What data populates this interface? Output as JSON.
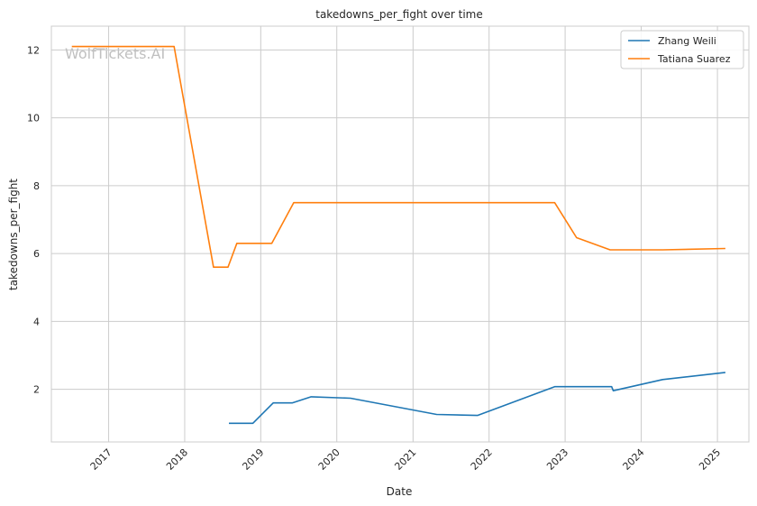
{
  "chart_data": {
    "type": "line",
    "title": "takedowns_per_fight over time",
    "xlabel": "Date",
    "ylabel": "takedowns_per_fight",
    "watermark": "WolfTickets.AI",
    "x_ticks": [
      "2017",
      "2018",
      "2019",
      "2020",
      "2021",
      "2022",
      "2023",
      "2024",
      "2025"
    ],
    "y_ticks": [
      2,
      4,
      6,
      8,
      10,
      12
    ],
    "xlim": [
      "2016-04-01",
      "2025-06-01"
    ],
    "ylim": [
      0.45,
      12.7
    ],
    "grid": true,
    "legend_position": "top-right",
    "series": [
      {
        "name": "Zhang Weili",
        "color": "#1f77b4",
        "points": [
          [
            "2018-08-01",
            1.0
          ],
          [
            "2018-11-24",
            1.0
          ],
          [
            "2019-03-02",
            1.6
          ],
          [
            "2019-06-01",
            1.6
          ],
          [
            "2019-08-31",
            1.78
          ],
          [
            "2020-03-07",
            1.74
          ],
          [
            "2021-04-24",
            1.26
          ],
          [
            "2021-11-06",
            1.23
          ],
          [
            "2022-11-12",
            2.08
          ],
          [
            "2023-08-12",
            2.08
          ],
          [
            "2023-08-20",
            1.96
          ],
          [
            "2024-04-13",
            2.29
          ],
          [
            "2025-02-08",
            2.5
          ]
        ]
      },
      {
        "name": "Tatiana Suarez",
        "color": "#ff7f0e",
        "points": [
          [
            "2016-07-08",
            12.1
          ],
          [
            "2017-11-11",
            12.1
          ],
          [
            "2018-05-19",
            5.6
          ],
          [
            "2018-07-28",
            5.6
          ],
          [
            "2018-09-08",
            6.3
          ],
          [
            "2019-02-23",
            6.3
          ],
          [
            "2019-06-08",
            7.5
          ],
          [
            "2022-11-12",
            7.5
          ],
          [
            "2023-02-25",
            6.47
          ],
          [
            "2023-08-05",
            6.11
          ],
          [
            "2024-04-13",
            6.11
          ],
          [
            "2025-02-08",
            6.15
          ]
        ]
      }
    ]
  }
}
